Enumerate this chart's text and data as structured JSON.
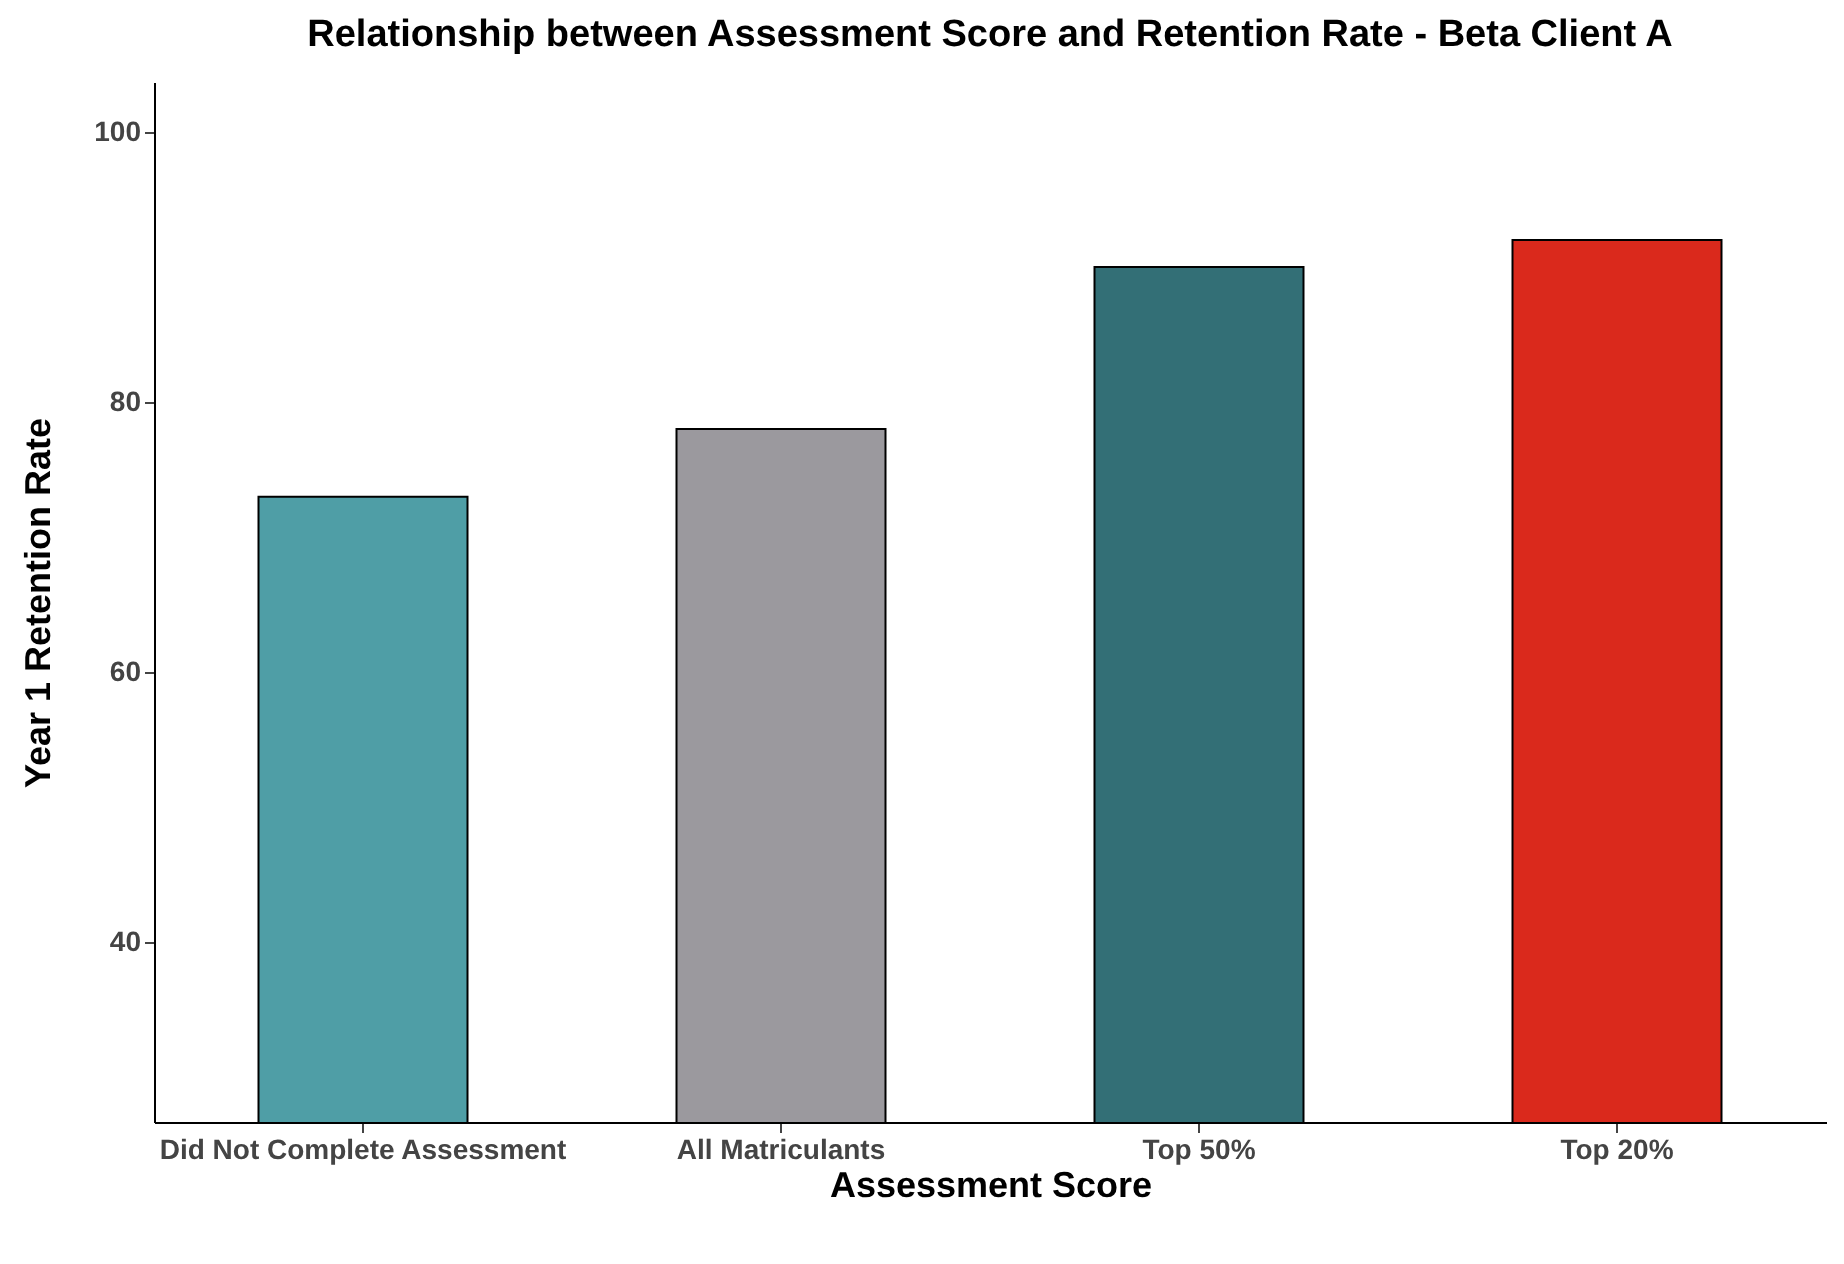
{
  "chart_data": {
    "type": "bar",
    "title": "Relationship between Assessment Score and Retention Rate - Beta Client A",
    "xlabel": "Assessment Score",
    "ylabel": "Year 1 Retention Rate",
    "categories": [
      "Did Not Complete Assessment",
      "All Matriculants",
      "Top 50%",
      "Top 20%"
    ],
    "values": [
      73,
      78,
      90,
      92
    ],
    "colors": [
      "#4f9ea6",
      "#9b999e",
      "#336f76",
      "#da291c"
    ],
    "ylim": [
      26.7,
      103.7
    ],
    "yticks": [
      40,
      60,
      80,
      100
    ],
    "grid": false,
    "legend": false
  }
}
